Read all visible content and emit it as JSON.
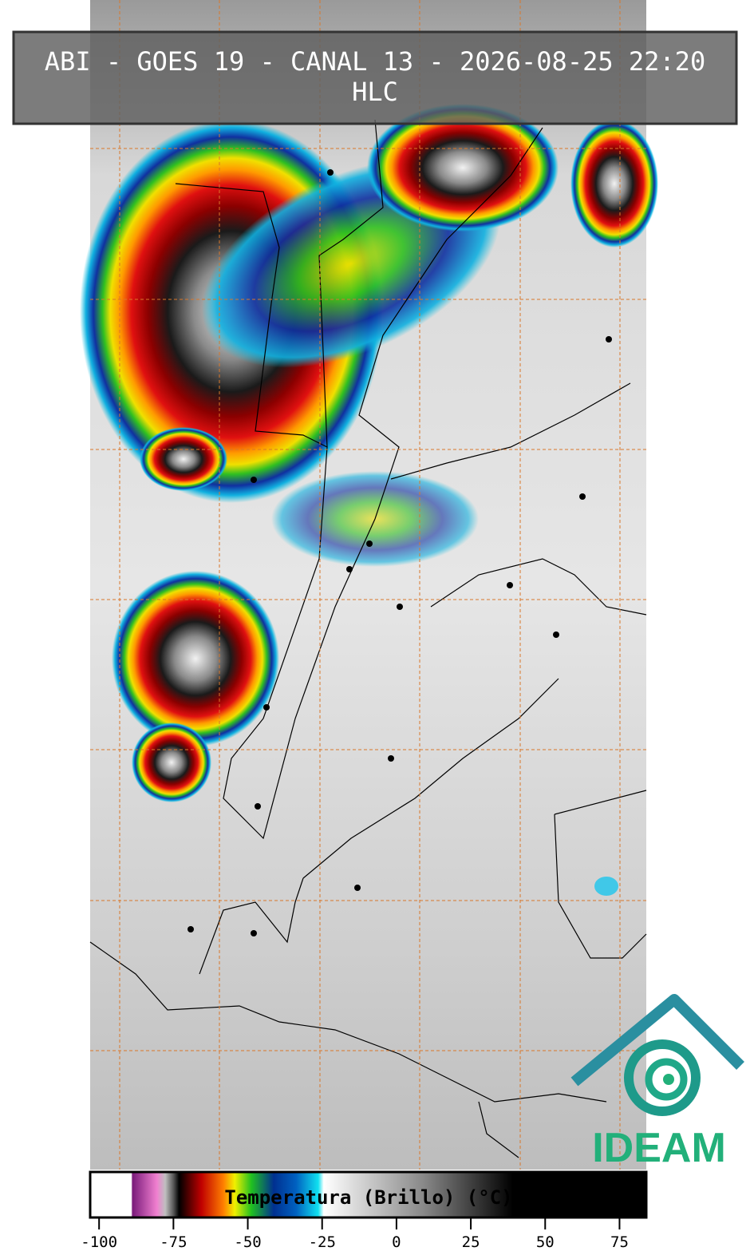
{
  "header": {
    "title": "ABI - GOES 19 - CANAL 13 - 2026-08-25 22:20",
    "subtitle": "HLC"
  },
  "colorbar": {
    "label": "Temperatura (Brillo) (°C)",
    "lim": [
      -103,
      84
    ],
    "ticks": [
      -100,
      -75,
      -50,
      -25,
      0,
      25,
      50,
      75
    ]
  },
  "logo": {
    "text": "IDEAM"
  }
}
